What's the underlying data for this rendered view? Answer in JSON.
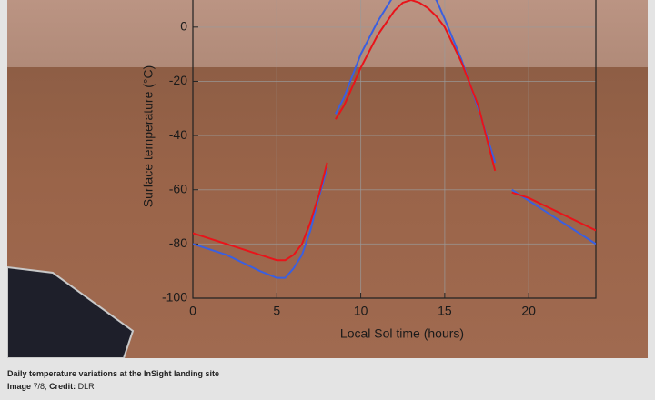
{
  "chart_data": {
    "type": "line",
    "ylabel": "Surface temperature (°C)",
    "xlabel": "Local Sol time (hours)",
    "x": [
      0,
      1,
      2,
      3,
      4,
      5,
      5.5,
      6,
      6.5,
      7,
      7.5,
      8,
      8.25,
      8.5,
      9,
      10,
      11,
      12,
      12.5,
      13,
      13.5,
      14,
      14.5,
      15,
      16,
      17,
      18,
      18.5,
      19,
      20,
      21,
      22,
      23,
      24
    ],
    "series": [
      {
        "color": "#3a5fe0",
        "values": [
          -80,
          -82,
          -84,
          -87,
          -90,
          -92.5,
          -92.5,
          -89,
          -84,
          -75,
          -63,
          -52,
          null,
          -32,
          -26,
          -10,
          2,
          12,
          15,
          16,
          15,
          13,
          10,
          3,
          -12,
          -30,
          -50,
          null,
          -60,
          -64,
          -68,
          -72,
          -76,
          -80
        ]
      },
      {
        "color": "#e8141a",
        "values": [
          -76,
          -78,
          -80,
          -82,
          -84,
          -86,
          -86,
          -84,
          -80,
          -72,
          -62,
          -50,
          null,
          -34,
          -29,
          -15,
          -3,
          6,
          9,
          10,
          9,
          7,
          4,
          0,
          -13,
          -29,
          -53,
          null,
          -61,
          -63,
          -66,
          -69,
          -72,
          -75
        ]
      }
    ],
    "xlim": [
      0,
      24
    ],
    "xticks": [
      0,
      5,
      10,
      15,
      20
    ],
    "ylim": [
      -100,
      10
    ],
    "yticks": [
      -100,
      -80,
      -60,
      -40,
      -20,
      0
    ],
    "grid": true
  },
  "caption": {
    "title": "Daily temperature variations at the InSight landing site",
    "image_label": "Image",
    "image_number": "7/8,",
    "credit_label": "Credit:",
    "credit": "DLR"
  }
}
